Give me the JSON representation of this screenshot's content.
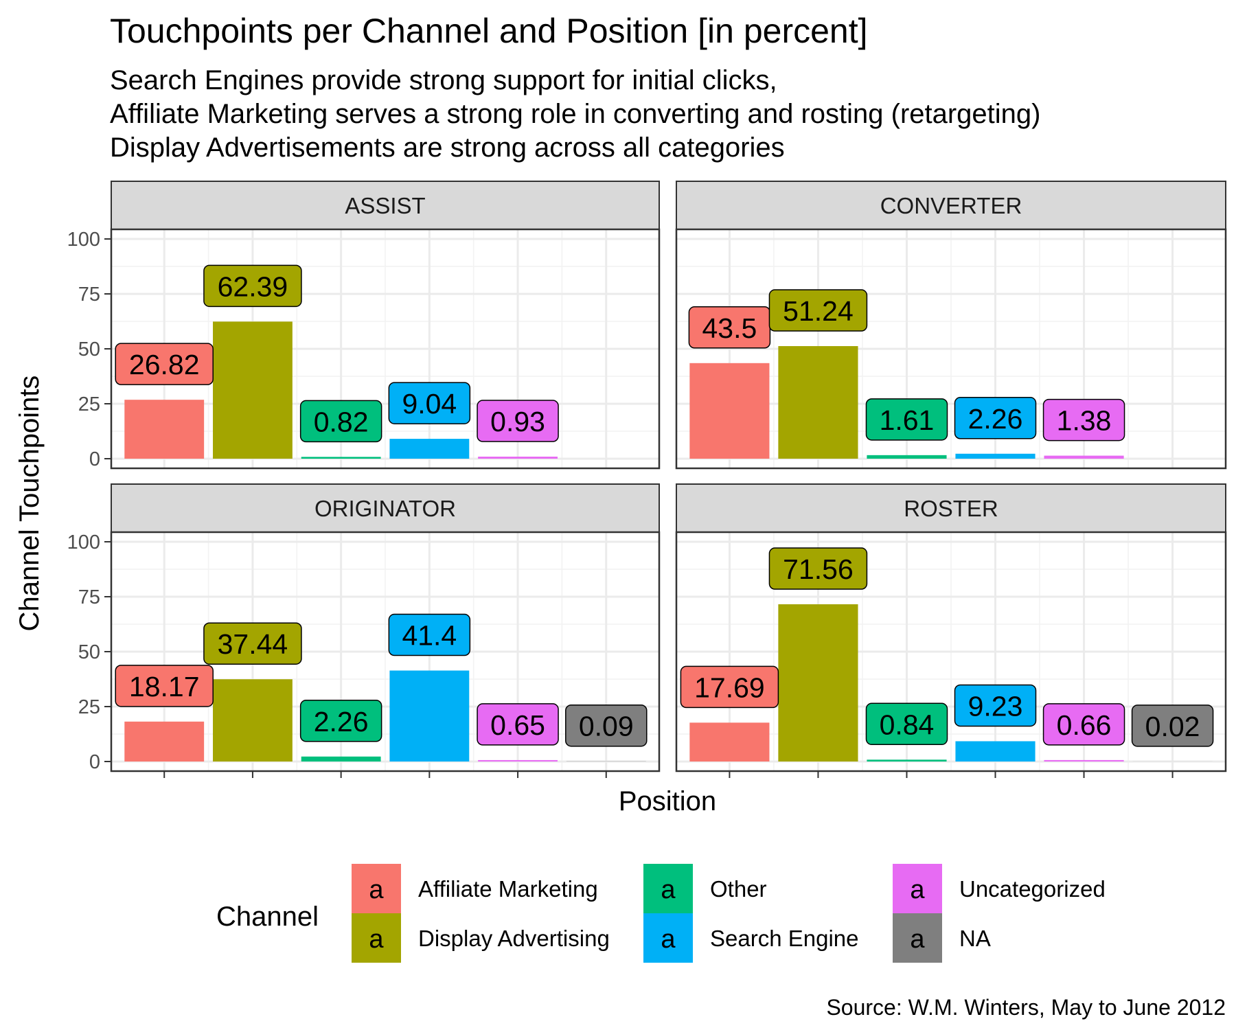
{
  "chart_data": {
    "type": "bar",
    "title": "Touchpoints per Channel and Position [in percent]",
    "subtitle_lines": [
      "Search Engines provide strong support for initial clicks,",
      "Affiliate Marketing serves a strong role in converting and rosting (retargeting)",
      "Display Advertisements are strong across all categories"
    ],
    "xlabel": "Position",
    "ylabel": "Channel Touchpoints",
    "ylim": [
      0,
      100
    ],
    "yticks": [
      0,
      25,
      50,
      75,
      100
    ],
    "grid": true,
    "legend": {
      "title": "Channel",
      "position": "bottom",
      "key_glyph": "a",
      "items": [
        {
          "label": "Affiliate Marketing",
          "color": "#F8766D"
        },
        {
          "label": "Display Advertising",
          "color": "#A3A500"
        },
        {
          "label": "Other",
          "color": "#00BF7D"
        },
        {
          "label": "Search Engine",
          "color": "#00B0F6"
        },
        {
          "label": "Uncategorized",
          "color": "#E76BF3"
        },
        {
          "label": "NA",
          "color": "#7F7F7F"
        }
      ]
    },
    "categories": [
      "Affiliate Marketing",
      "Display Advertising",
      "Other",
      "Search Engine",
      "Uncategorized",
      "NA"
    ],
    "facets": [
      {
        "name": "ASSIST",
        "values": [
          26.82,
          62.39,
          0.82,
          9.04,
          0.93,
          null
        ]
      },
      {
        "name": "CONVERTER",
        "values": [
          43.5,
          51.24,
          1.61,
          2.26,
          1.38,
          null
        ]
      },
      {
        "name": "ORIGINATOR",
        "values": [
          18.17,
          37.44,
          2.26,
          41.4,
          0.65,
          0.09
        ]
      },
      {
        "name": "ROSTER",
        "values": [
          17.69,
          71.56,
          0.84,
          9.23,
          0.66,
          0.02
        ]
      }
    ],
    "caption": "Source: W.M. Winters, May to June 2012"
  }
}
